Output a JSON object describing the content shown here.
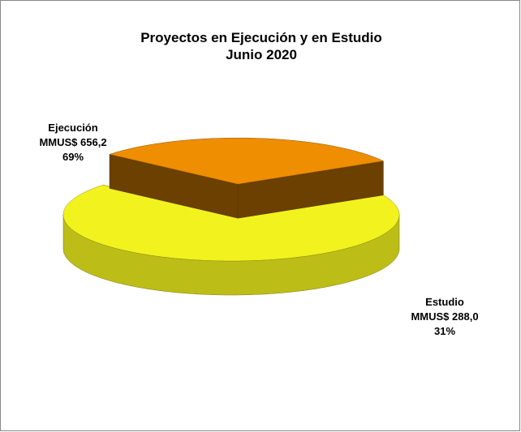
{
  "chart_data": {
    "type": "pie",
    "title": "Proyectos en Ejecución y en Estudio",
    "subtitle": "Junio 2020",
    "categories": [
      "Ejecución",
      "Estudio"
    ],
    "values": [
      656.2,
      288.0
    ],
    "value_labels": [
      "MMUS$ 656,2",
      "MMUS$ 288,0"
    ],
    "percents": [
      69,
      31
    ],
    "percent_labels": [
      "69%",
      "31%"
    ],
    "colors": [
      "#f2f21e",
      "#ee8e00"
    ]
  }
}
